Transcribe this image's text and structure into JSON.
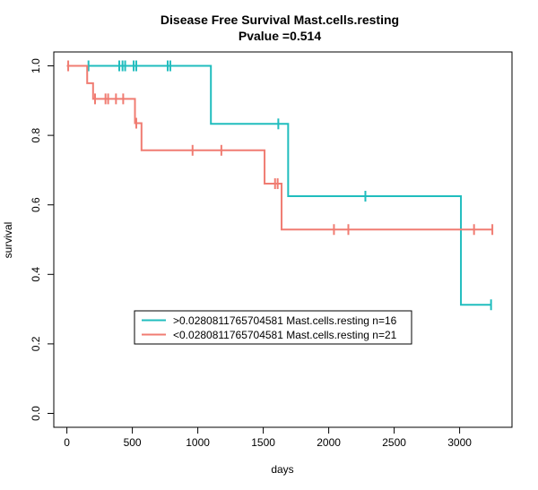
{
  "chart_data": {
    "type": "line",
    "title": "Disease Free Survival Mast.cells.resting",
    "subtitle": "Pvalue =0.514",
    "xlabel": "days",
    "ylabel": "survival",
    "xlim": [
      -100,
      3400
    ],
    "ylim": [
      -0.04,
      1.04
    ],
    "x_ticks": [
      0,
      500,
      1000,
      1500,
      2000,
      2500,
      3000
    ],
    "y_ticks": [
      0.0,
      0.2,
      0.4,
      0.6,
      0.8,
      1.0
    ],
    "y_tick_labels": [
      "0.0",
      "0.2",
      "0.4",
      "0.6",
      "0.8",
      "1.0"
    ],
    "grid": false,
    "legend_position": "bottom-left",
    "series": [
      {
        "name": ">0.0280811765704581 Mast.cells.resting n=16",
        "color": "#20BDBE",
        "steps": [
          [
            0,
            1.0
          ],
          [
            1100,
            0.833
          ],
          [
            1690,
            0.625
          ],
          [
            3010,
            0.3125
          ],
          [
            3240,
            0.3125
          ]
        ],
        "censored": [
          [
            165,
            1.0
          ],
          [
            400,
            1.0
          ],
          [
            425,
            1.0
          ],
          [
            445,
            1.0
          ],
          [
            510,
            1.0
          ],
          [
            530,
            1.0
          ],
          [
            770,
            1.0
          ],
          [
            790,
            1.0
          ],
          [
            1615,
            0.833
          ],
          [
            2280,
            0.625
          ],
          [
            3240,
            0.3125
          ]
        ]
      },
      {
        "name": "<0.0280811765704581 Mast.cells.resting n=21",
        "color": "#F07C72",
        "steps": [
          [
            0,
            1.0
          ],
          [
            155,
            0.95
          ],
          [
            200,
            0.905
          ],
          [
            520,
            0.835
          ],
          [
            570,
            0.757
          ],
          [
            1510,
            0.661
          ],
          [
            1640,
            0.529
          ],
          [
            3250,
            0.529
          ]
        ],
        "censored": [
          [
            10,
            1.0
          ],
          [
            215,
            0.905
          ],
          [
            295,
            0.905
          ],
          [
            315,
            0.905
          ],
          [
            375,
            0.905
          ],
          [
            430,
            0.905
          ],
          [
            530,
            0.835
          ],
          [
            960,
            0.757
          ],
          [
            1180,
            0.757
          ],
          [
            1590,
            0.661
          ],
          [
            1610,
            0.661
          ],
          [
            2040,
            0.529
          ],
          [
            2150,
            0.529
          ],
          [
            3110,
            0.529
          ],
          [
            3250,
            0.529
          ]
        ]
      }
    ]
  }
}
